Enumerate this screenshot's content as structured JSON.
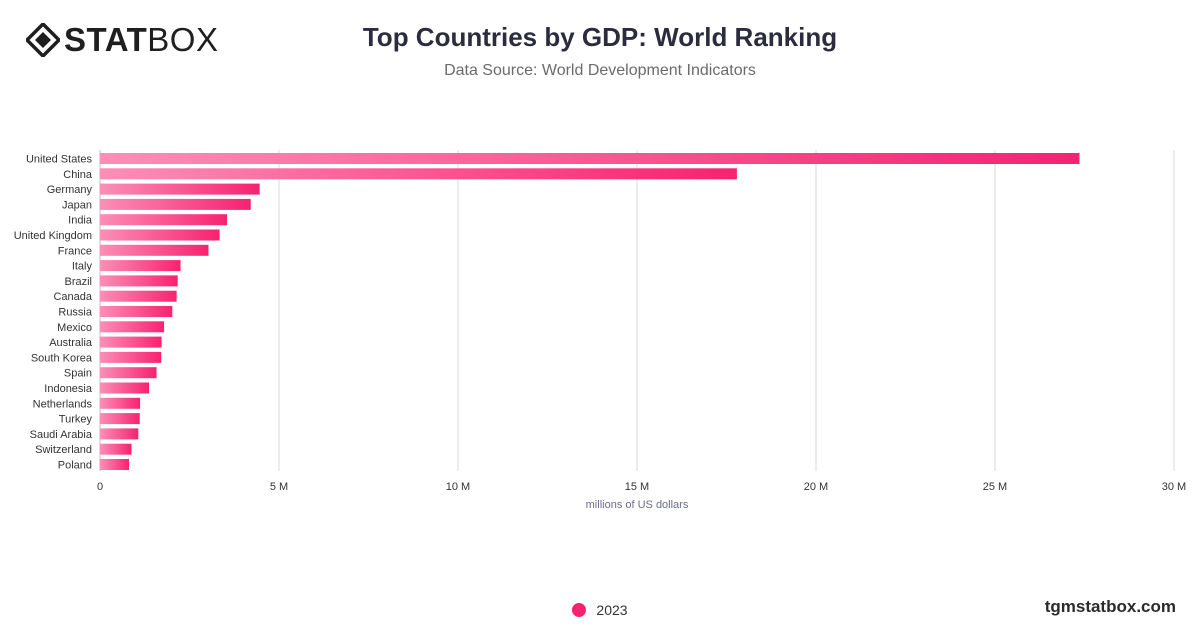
{
  "brand": {
    "logo_bold": "STAT",
    "logo_light": "BOX",
    "site": "tgmstatbox.com"
  },
  "chart_data": {
    "type": "bar",
    "orientation": "horizontal",
    "title": "Top Countries by GDP: World Ranking",
    "subtitle": "Data Source: World Development Indicators",
    "xlabel": "millions of US dollars",
    "ylabel": "",
    "xlim": [
      0,
      30000000
    ],
    "x_ticks": [
      0,
      5000000,
      10000000,
      15000000,
      20000000,
      25000000,
      30000000
    ],
    "x_tick_labels": [
      "0",
      "5 M",
      "10 M",
      "15 M",
      "20 M",
      "25 M",
      "30 M"
    ],
    "grid": "vertical",
    "legend_position": "bottom",
    "categories": [
      "United States",
      "China",
      "Germany",
      "Japan",
      "India",
      "United Kingdom",
      "France",
      "Italy",
      "Brazil",
      "Canada",
      "Russia",
      "Mexico",
      "Australia",
      "South Korea",
      "Spain",
      "Indonesia",
      "Netherlands",
      "Turkey",
      "Saudi Arabia",
      "Switzerland",
      "Poland"
    ],
    "series": [
      {
        "name": "2023",
        "color": "#f72270",
        "values": [
          27360000,
          17790000,
          4460000,
          4210000,
          3550000,
          3340000,
          3030000,
          2250000,
          2170000,
          2140000,
          2020000,
          1790000,
          1720000,
          1710000,
          1580000,
          1370000,
          1120000,
          1110000,
          1070000,
          880000,
          810000
        ]
      }
    ]
  }
}
